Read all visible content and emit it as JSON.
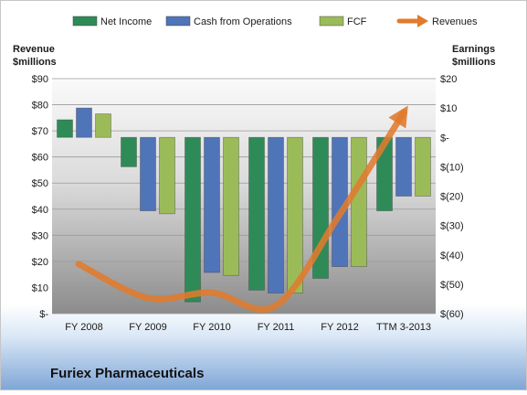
{
  "chart_data": {
    "type": "bar",
    "title": "Furiex Pharmaceuticals",
    "categories": [
      "FY 2008",
      "FY 2009",
      "FY 2010",
      "FY 2011",
      "FY 2012",
      "TTM 3-2013"
    ],
    "series": [
      {
        "name": "Net Income",
        "axis": "right",
        "color": "#2e8b57",
        "values": [
          6,
          -10,
          -56,
          -52,
          -48,
          -25
        ]
      },
      {
        "name": "Cash from Operations",
        "axis": "right",
        "color": "#4f74b8",
        "values": [
          10,
          -25,
          -46,
          -53,
          -44,
          -20
        ]
      },
      {
        "name": "FCF",
        "axis": "right",
        "color": "#9bbb59",
        "values": [
          8,
          -26,
          -47,
          -53,
          -44,
          -20
        ]
      }
    ],
    "line_series": {
      "name": "Revenues",
      "axis": "left",
      "color": "#e07b2e",
      "values": [
        19,
        6,
        8,
        3,
        38,
        77
      ]
    },
    "left_axis": {
      "label_lines": [
        "Revenue",
        "$millions"
      ],
      "ticks": [
        0,
        10,
        20,
        30,
        40,
        50,
        60,
        70,
        80,
        90
      ],
      "tick_labels": [
        "$-",
        "$10",
        "$20",
        "$30",
        "$40",
        "$50",
        "$60",
        "$70",
        "$80",
        "$90"
      ],
      "ylim": [
        0,
        90
      ]
    },
    "right_axis": {
      "label_lines": [
        "Earnings",
        "$millions"
      ],
      "ticks": [
        -60,
        -50,
        -40,
        -30,
        -20,
        -10,
        0,
        10,
        20
      ],
      "tick_labels": [
        "$(60)",
        "$(50)",
        "$(40)",
        "$(30)",
        "$(20)",
        "$(10)",
        "$-",
        "$10",
        "$20"
      ],
      "ylim": [
        -60,
        20
      ]
    },
    "legend_position": "top",
    "grid": true
  }
}
